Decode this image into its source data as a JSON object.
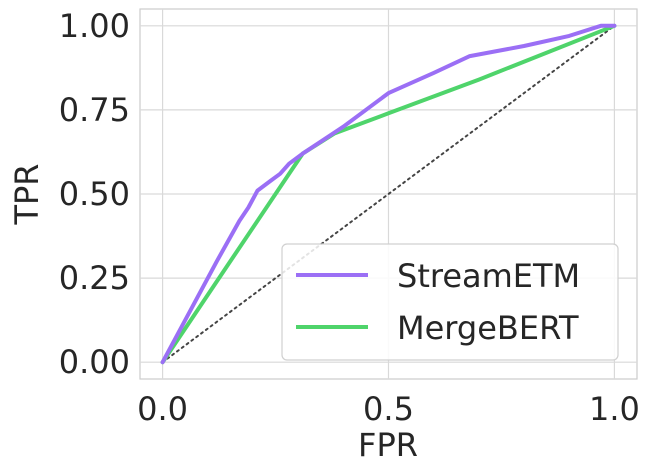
{
  "chart_data": {
    "type": "line",
    "xlabel": "FPR",
    "ylabel": "TPR",
    "xlim": [
      -0.05,
      1.05
    ],
    "ylim": [
      -0.05,
      1.05
    ],
    "x_ticks": [
      0.0,
      0.5,
      1.0
    ],
    "x_tick_labels": [
      "0.0",
      "0.5",
      "1.0"
    ],
    "y_ticks": [
      0.0,
      0.25,
      0.5,
      0.75,
      1.0
    ],
    "y_tick_labels": [
      "0.00",
      "0.25",
      "0.50",
      "0.75",
      "1.00"
    ],
    "grid": true,
    "legend_position": "lower-right",
    "series": [
      {
        "name": "StreamETM",
        "color": "#9B6FF5",
        "x": [
          0.0,
          0.12,
          0.17,
          0.19,
          0.21,
          0.24,
          0.26,
          0.28,
          0.31,
          0.4,
          0.5,
          0.6,
          0.68,
          0.8,
          0.9,
          0.97,
          1.0
        ],
        "y": [
          0.0,
          0.3,
          0.42,
          0.46,
          0.51,
          0.54,
          0.56,
          0.59,
          0.62,
          0.7,
          0.8,
          0.86,
          0.91,
          0.94,
          0.97,
          1.0,
          1.0
        ]
      },
      {
        "name": "MergeBERT",
        "color": "#4FD46B",
        "x": [
          0.0,
          0.14,
          0.28,
          0.31,
          0.38,
          0.5,
          0.7,
          1.0
        ],
        "y": [
          0.0,
          0.28,
          0.56,
          0.62,
          0.68,
          0.74,
          0.84,
          1.0
        ]
      },
      {
        "name": "",
        "color": "#444444",
        "dashed": true,
        "x": [
          0.0,
          1.0
        ],
        "y": [
          0.0,
          1.0
        ]
      }
    ]
  }
}
